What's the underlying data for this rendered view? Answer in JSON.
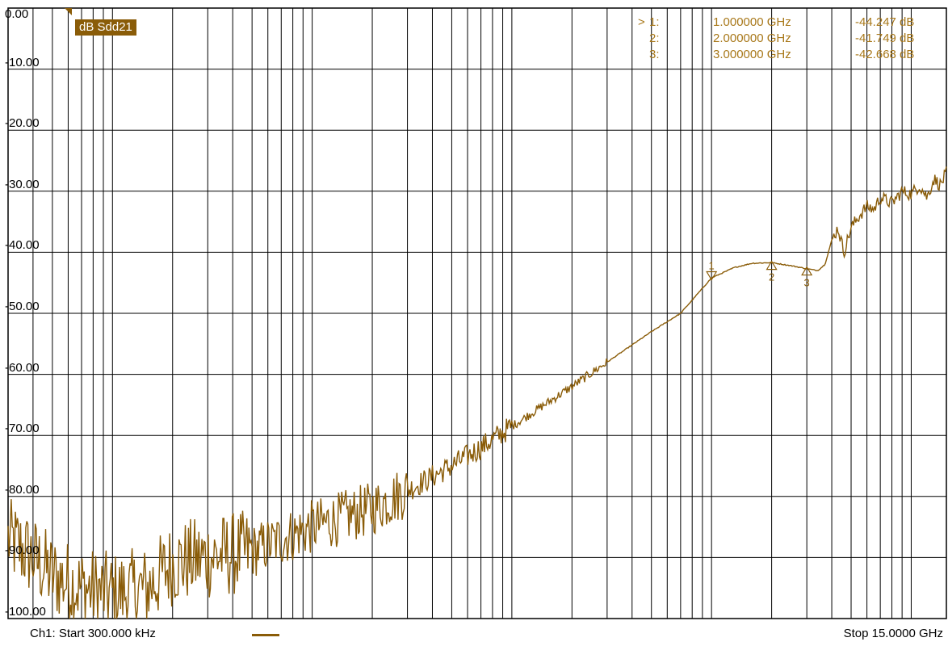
{
  "window": {
    "trace_label": "dB Sdd21",
    "footer": {
      "channel_start": "Ch1: Start  300.000 kHz",
      "stop": "Stop  15.0000 GHz"
    }
  },
  "colors": {
    "trace": "#8a5c08",
    "marker_text": "#a8781a",
    "grid": "#000000",
    "background": "#ffffff"
  },
  "markers": [
    {
      "selected": ">",
      "id": "1:",
      "freq": "1.000000 GHz",
      "value": "-44.247 dB",
      "label": "1"
    },
    {
      "selected": "",
      "id": "2:",
      "freq": "2.000000 GHz",
      "value": "-41.749 dB",
      "label": "2"
    },
    {
      "selected": "",
      "id": "3:",
      "freq": "3.000000 GHz",
      "value": "-42.668 dB",
      "label": "3"
    }
  ],
  "chart_data": {
    "type": "line",
    "title": "dB Sdd21",
    "xlabel": "",
    "ylabel": "",
    "x_scale": "log",
    "xlim_hz": [
      300000,
      15000000000
    ],
    "ylim": [
      -100,
      0
    ],
    "grid": true,
    "yticks": [
      "0.00",
      "-10.00",
      "-20.00",
      "-30.00",
      "-40.00",
      "-50.00",
      "-60.00",
      "-70.00",
      "-80.00",
      "-90.00",
      "-100.00"
    ],
    "series": [
      {
        "name": "",
        "x_hz": [
          300000,
          400000,
          500000,
          700000,
          1000000,
          1500000,
          2000000,
          3000000,
          5000000,
          7000000,
          10000000,
          20000000,
          30000000,
          50000000,
          70000000,
          100000000,
          200000000,
          300000000,
          500000000,
          700000000,
          1000000000,
          1300000000,
          1600000000,
          2000000000,
          2500000000,
          3000000000,
          3400000000,
          3700000000,
          4000000000,
          4300000000,
          4600000000,
          5000000000,
          5500000000,
          6000000000,
          6500000000,
          7000000000,
          8000000000,
          9000000000,
          10000000000,
          11000000000,
          12000000000,
          13000000000,
          14000000000,
          15000000000
        ],
        "y_db": [
          -87,
          -90,
          -93,
          -95,
          -96,
          -95,
          -91,
          -90,
          -89,
          -87,
          -85,
          -82,
          -79,
          -75,
          -72,
          -68.5,
          -62,
          -58,
          -53,
          -50,
          -44.2,
          -42.5,
          -41.8,
          -41.7,
          -42.2,
          -42.7,
          -43,
          -42,
          -38,
          -36,
          -40,
          -36,
          -34,
          -32.5,
          -33,
          -31,
          -32,
          -30,
          -30.5,
          -29,
          -31,
          -28,
          -29,
          -27
        ]
      }
    ],
    "markers": [
      {
        "label": "1",
        "x_hz": 1000000000,
        "y_db": -44.247
      },
      {
        "label": "2",
        "x_hz": 2000000000,
        "y_db": -41.749
      },
      {
        "label": "3",
        "x_hz": 3000000000,
        "y_db": -42.668
      }
    ]
  }
}
